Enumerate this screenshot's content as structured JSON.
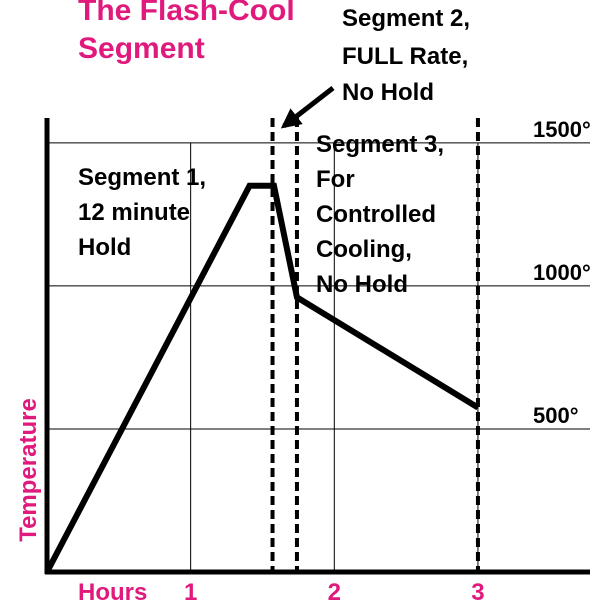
{
  "chart_data": {
    "type": "line",
    "title": [
      "The Flash-Cool",
      "Segment"
    ],
    "xlabel": "Hours",
    "ylabel": "Temperature",
    "x": [
      0,
      1.41,
      1.58,
      1.74,
      3.0
    ],
    "series": [
      {
        "color": "#000000",
        "values": [
          0,
          1350,
          1350,
          960,
          575
        ]
      }
    ],
    "xlim": [
      0,
      3.78
    ],
    "ylim": [
      0,
      1587
    ],
    "xticks": [
      1,
      2,
      3
    ],
    "yticks": [
      {
        "value": 500,
        "label": "500°"
      },
      {
        "value": 1000,
        "label": "1000°"
      },
      {
        "value": 1500,
        "label": "1500°"
      }
    ],
    "grid": true,
    "reference_lines": [
      1.57,
      1.74,
      3.0
    ],
    "annotations": [
      {
        "text": [
          "Segment 2,",
          "FULL Rate,",
          "No Hold"
        ]
      },
      {
        "text": [
          "Segment 1,",
          "12 minute",
          "Hold"
        ]
      },
      {
        "text": [
          "Segment 3,",
          "For",
          "Controlled",
          "Cooling,",
          "No Hold"
        ]
      }
    ],
    "label_color": "#e0197d"
  }
}
